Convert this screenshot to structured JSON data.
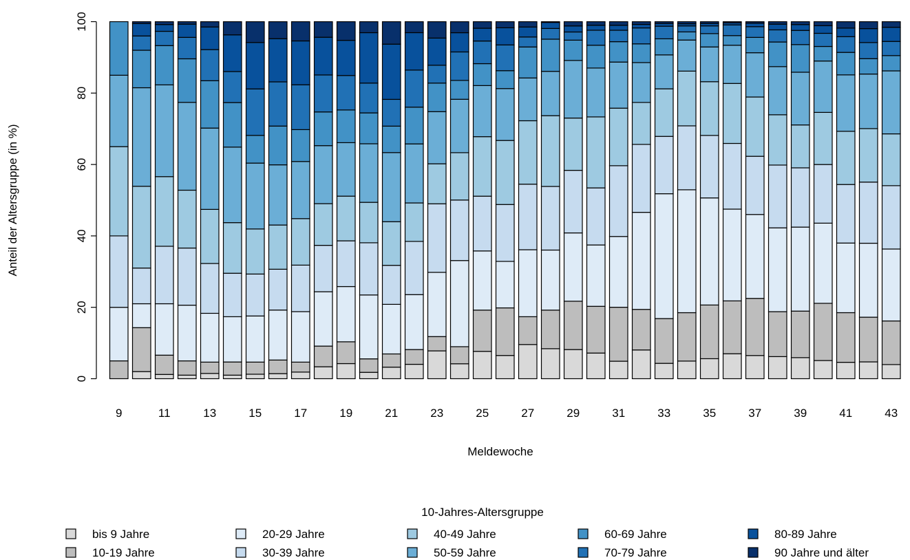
{
  "chart_data": {
    "type": "bar",
    "stacked": true,
    "title": "",
    "xlabel": "Meldewoche",
    "ylabel": "Anteil der Altersgruppe (in %)",
    "ylim": [
      0,
      100
    ],
    "yticks": [
      0,
      20,
      40,
      60,
      80,
      100
    ],
    "xtick_labels": [
      "9",
      "11",
      "13",
      "15",
      "17",
      "19",
      "21",
      "23",
      "25",
      "27",
      "29",
      "31",
      "33",
      "35",
      "37",
      "39",
      "41",
      "43"
    ],
    "categories": [
      "9",
      "10",
      "11",
      "12",
      "13",
      "14",
      "15",
      "16",
      "17",
      "18",
      "19",
      "20",
      "21",
      "22",
      "23",
      "24",
      "25",
      "26",
      "27",
      "28",
      "29",
      "30",
      "31",
      "32",
      "33",
      "34",
      "35",
      "36",
      "37",
      "38",
      "39",
      "40",
      "41",
      "42",
      "43"
    ],
    "grid": false,
    "legend_position": "bottom",
    "legend_title": "10-Jahres-Altersgruppe",
    "series": [
      {
        "name": "bis 9 Jahre",
        "color": "#d9d9d9",
        "values": [
          0,
          2,
          1.2,
          1,
          1.5,
          1,
          1.3,
          1.5,
          2,
          3.3,
          4.3,
          1.8,
          3.5,
          4.2,
          7.8,
          4.2,
          7.5,
          6.5,
          9.6,
          8.4,
          8.2,
          7.2,
          4.9,
          8.3,
          4.4,
          5,
          5.7,
          7,
          6.5,
          6.2,
          5.8,
          5,
          4.6,
          4.6,
          3.8
        ]
      },
      {
        "name": "10-19 Jahre",
        "color": "#bdbdbd",
        "values": [
          5,
          12.3,
          5.4,
          4,
          3.2,
          3.7,
          3.5,
          4,
          3,
          5.7,
          6.2,
          3.8,
          4,
          4.3,
          4,
          4.8,
          11.3,
          13.3,
          7.8,
          10.8,
          13.6,
          13.1,
          15.1,
          11.7,
          12.8,
          13.7,
          15.3,
          14.8,
          16,
          12.6,
          12.8,
          15.7,
          13.9,
          12.2,
          11.7
        ]
      },
      {
        "name": "20-29 Jahre",
        "color": "#deebf7",
        "values": [
          15,
          6.7,
          14.4,
          15.6,
          13.8,
          12.7,
          13.3,
          14.7,
          15.2,
          15,
          15.7,
          18,
          15,
          16,
          18,
          24.2,
          16.2,
          13,
          18.8,
          16.8,
          19.2,
          17.2,
          19.8,
          28,
          35.7,
          34.8,
          30.5,
          25.7,
          23.5,
          23.5,
          23.1,
          22,
          19.5,
          20.2,
          19.3
        ]
      },
      {
        "name": "30-39 Jahre",
        "color": "#c6dbef",
        "values": [
          20,
          10,
          16.1,
          16,
          14.1,
          12.2,
          12.1,
          12,
          14,
          12.8,
          13,
          14.7,
          11.8,
          15.5,
          19.2,
          17,
          15,
          15.9,
          18.4,
          17.8,
          17.6,
          16,
          19.8,
          19.6,
          16.4,
          18.1,
          17.8,
          18.4,
          16.3,
          17.6,
          16.3,
          16.1,
          16.4,
          16.7,
          17
        ]
      },
      {
        "name": "40-49 Jahre",
        "color": "#9ecae1",
        "values": [
          25,
          22.9,
          19.5,
          16.2,
          15.3,
          14.2,
          13,
          13,
          14,
          11.5,
          12.7,
          11.4,
          13.2,
          11.2,
          11.2,
          13.3,
          16.3,
          17.9,
          17.8,
          19.8,
          14.7,
          19.9,
          16.1,
          12.1,
          13.6,
          15.5,
          15.3,
          16.8,
          16.6,
          14.1,
          11.8,
          14.3,
          14.9,
          14.6,
          13.9
        ]
      },
      {
        "name": "50-59 Jahre",
        "color": "#6baed6",
        "values": [
          20,
          27.6,
          25.7,
          24.6,
          23,
          21.2,
          19,
          17.7,
          17.2,
          16,
          15.2,
          16.5,
          20.9,
          17.2,
          14.6,
          15,
          14,
          14.5,
          12,
          12.4,
          16.2,
          13.7,
          12.9,
          11.5,
          9.7,
          8.8,
          9.9,
          10.7,
          12.4,
          13.5,
          14.5,
          14.1,
          15.8,
          14.9,
          16.9
        ]
      },
      {
        "name": "60-69 Jahre",
        "color": "#4292c6",
        "values": [
          15,
          10.5,
          11,
          12.2,
          13.4,
          12.5,
          8,
          11.4,
          9.6,
          9.3,
          9.3,
          8.7,
          8,
          10.7,
          8,
          5.3,
          6,
          5,
          8.7,
          9,
          5.7,
          6.4,
          5.7,
          5.4,
          4.6,
          2.3,
          3.8,
          2.7,
          4.3,
          6.9,
          7.6,
          4,
          6.3,
          4.2,
          4.1
        ]
      },
      {
        "name": "70-79 Jahre",
        "color": "#2171b5",
        "values": [
          0,
          4,
          4,
          6,
          8.8,
          8.7,
          13.4,
          13,
          13.5,
          10.2,
          9.8,
          8.4,
          8.1,
          10.8,
          5,
          8,
          6.2,
          7.2,
          2.8,
          3,
          2.3,
          4.2,
          3.2,
          4.6,
          3.6,
          1.7,
          2.2,
          3,
          3,
          3.4,
          3.9,
          3.6,
          4.4,
          4.4,
          3.8
        ]
      },
      {
        "name": "80-89 Jahre",
        "color": "#08519c",
        "values": [
          0,
          3.5,
          1.9,
          3.7,
          6.4,
          10.3,
          13.4,
          12.7,
          13.2,
          10.4,
          10,
          14.2,
          16.7,
          10.9,
          7.6,
          5.4,
          3.5,
          4.8,
          2.8,
          1.7,
          1.7,
          1.4,
          1.4,
          1,
          0.8,
          0.6,
          0.7,
          0.6,
          1,
          1.6,
          1.6,
          2.1,
          2.4,
          3.8,
          3.8
        ]
      },
      {
        "name": "90 Jahre und älter",
        "color": "#08306b",
        "values": [
          0,
          0.5,
          0.8,
          0.7,
          1.5,
          3.7,
          6,
          5,
          5.8,
          4.3,
          5.3,
          3.1,
          6.8,
          3.2,
          4.6,
          3.1,
          1.8,
          1.7,
          1.5,
          0.2,
          1.2,
          1,
          1,
          0.8,
          0.5,
          0.6,
          0.5,
          0.3,
          0.4,
          0.7,
          0.8,
          1.1,
          1.8,
          1.9,
          1.5
        ]
      }
    ]
  }
}
